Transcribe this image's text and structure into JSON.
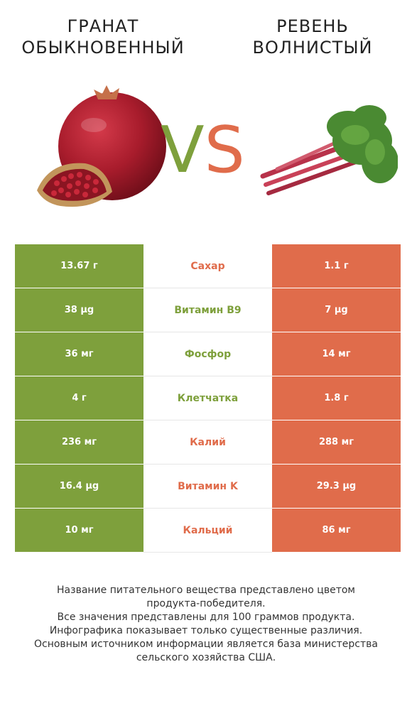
{
  "header": {
    "left_title_line1": "ГРАНАТ",
    "left_title_line2": "ОБЫКНОВЕННЫЙ",
    "right_title_line1": "РЕВЕНЬ",
    "right_title_line2": "ВОЛНИСТЫЙ",
    "vs_v": "V",
    "vs_s": "S"
  },
  "colors": {
    "left_winner": "#7ea03c",
    "right_winner": "#e06c4b"
  },
  "rows": [
    {
      "left": "13.67 г",
      "nutrient": "Сахар",
      "right": "1.1 г",
      "winner": "right"
    },
    {
      "left": "38 µg",
      "nutrient": "Витамин B9",
      "right": "7 µg",
      "winner": "left"
    },
    {
      "left": "36 мг",
      "nutrient": "Фосфор",
      "right": "14 мг",
      "winner": "left"
    },
    {
      "left": "4 г",
      "nutrient": "Клетчатка",
      "right": "1.8 г",
      "winner": "left"
    },
    {
      "left": "236 мг",
      "nutrient": "Калий",
      "right": "288 мг",
      "winner": "right"
    },
    {
      "left": "16.4 µg",
      "nutrient": "Витамин K",
      "right": "29.3 µg",
      "winner": "right"
    },
    {
      "left": "10 мг",
      "nutrient": "Кальций",
      "right": "86 мг",
      "winner": "right"
    }
  ],
  "footnote": {
    "line1": "Название питательного вещества представлено цветом",
    "line2": "продукта-победителя.",
    "line3": "Все значения представлены для 100 граммов продукта.",
    "line4": "Инфографика показывает только существенные различия.",
    "line5": "Основным источником информации является база министерства",
    "line6": "сельского хозяйства США."
  }
}
